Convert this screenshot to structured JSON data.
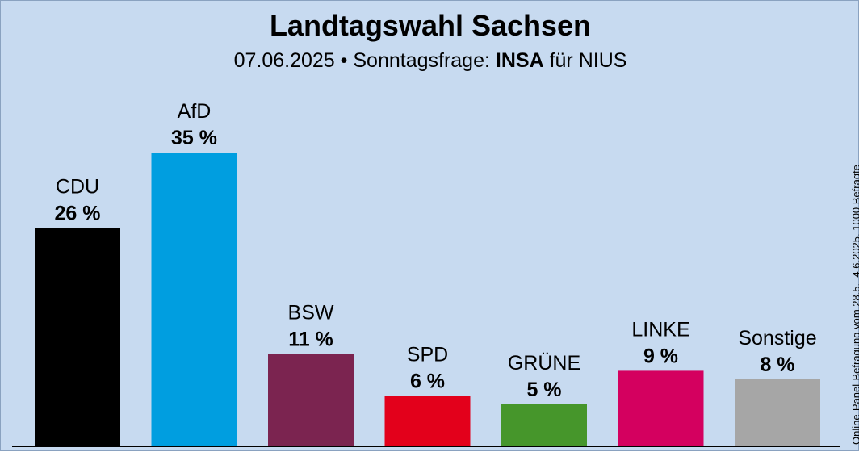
{
  "chart_data": {
    "type": "bar",
    "title": "Landtagswahl Sachsen",
    "subtitle": {
      "date": "07.06.2025",
      "separator": "•",
      "prefix": "Sonntagsfrage:",
      "institute": "INSA",
      "suffix": "für NIUS"
    },
    "source_note": "Online-Panel-Befragung vom 28.5.–4.6.2025, 1000 Befragte",
    "unit": "%",
    "categories": [
      "CDU",
      "AfD",
      "BSW",
      "SPD",
      "GRÜNE",
      "LINKE",
      "Sonstige"
    ],
    "values": [
      26,
      35,
      11,
      6,
      5,
      9,
      8
    ],
    "value_labels": [
      "26 %",
      "35 %",
      "11 %",
      "6 %",
      "5 %",
      "9 %",
      "8 %"
    ],
    "colors": [
      "#000000",
      "#009ee0",
      "#7b2450",
      "#e3001b",
      "#46962b",
      "#d4005f",
      "#a6a6a6"
    ],
    "ylim": [
      0,
      35
    ],
    "grid": false,
    "legend": "none"
  }
}
